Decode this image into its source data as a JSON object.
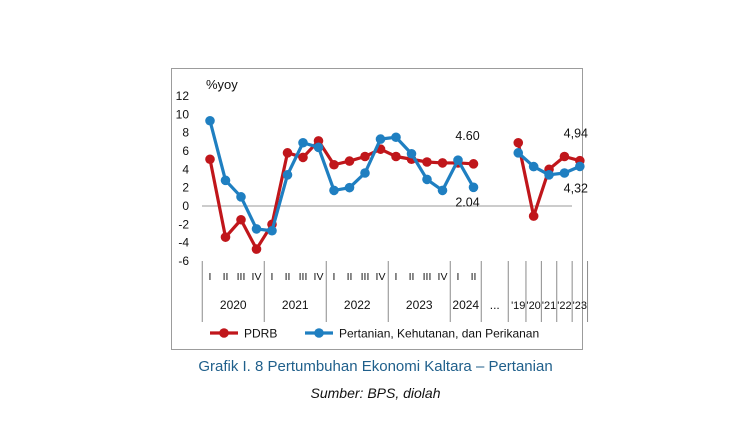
{
  "caption": {
    "title": "Grafik I. 8 Pertumbuhan Ekonomi Kaltara – Pertanian",
    "source": "Sumber: BPS, diolah"
  },
  "chart_data": {
    "type": "line",
    "ylabel": "%yoy",
    "ylim": [
      -6,
      12
    ],
    "yticks": [
      -6,
      -4,
      -2,
      0,
      2,
      4,
      6,
      8,
      10,
      12
    ],
    "grid": false,
    "legend_position": "bottom",
    "quarterly": {
      "quarter_labels": [
        "I",
        "II",
        "III",
        "IV",
        "I",
        "II",
        "III",
        "IV",
        "I",
        "II",
        "III",
        "IV",
        "I",
        "II",
        "III",
        "IV",
        "I",
        "II"
      ],
      "years": [
        {
          "label": "2020",
          "start": 0,
          "end": 3
        },
        {
          "label": "2021",
          "start": 4,
          "end": 7
        },
        {
          "label": "2022",
          "start": 8,
          "end": 11
        },
        {
          "label": "2023",
          "start": 12,
          "end": 15
        },
        {
          "label": "2024",
          "start": 16,
          "end": 17
        }
      ]
    },
    "ellipsis": "...",
    "annual": {
      "labels": [
        "'19",
        "'20",
        "'21",
        "'22",
        "'23"
      ]
    },
    "series": [
      {
        "name": "PDRB",
        "color": "#c0161b",
        "quarterly": [
          5.1,
          -3.4,
          -1.5,
          -4.7,
          -2.0,
          5.8,
          5.3,
          7.1,
          4.5,
          4.9,
          5.4,
          6.2,
          5.4,
          5.1,
          4.8,
          4.7,
          4.7,
          4.6
        ],
        "annual": [
          6.9,
          -1.1,
          4.0,
          5.4,
          4.94
        ]
      },
      {
        "name": "Pertanian, Kehutanan, dan Perikanan",
        "color": "#1f7fc1",
        "quarterly": [
          9.3,
          2.8,
          1.0,
          -2.5,
          -2.7,
          3.4,
          6.9,
          6.4,
          1.7,
          2.0,
          3.6,
          7.3,
          7.5,
          5.7,
          2.9,
          1.7,
          5.0,
          2.04
        ],
        "annual": [
          5.8,
          4.3,
          3.4,
          3.6,
          4.32
        ]
      }
    ],
    "annotations": [
      {
        "text": "4.60",
        "series": 0,
        "part": "quarterly",
        "index": 17
      },
      {
        "text": "2.04",
        "series": 1,
        "part": "quarterly",
        "index": 17
      },
      {
        "text": "4,94",
        "series": 0,
        "part": "annual",
        "index": 4
      },
      {
        "text": "4,32",
        "series": 1,
        "part": "annual",
        "index": 4
      }
    ]
  }
}
